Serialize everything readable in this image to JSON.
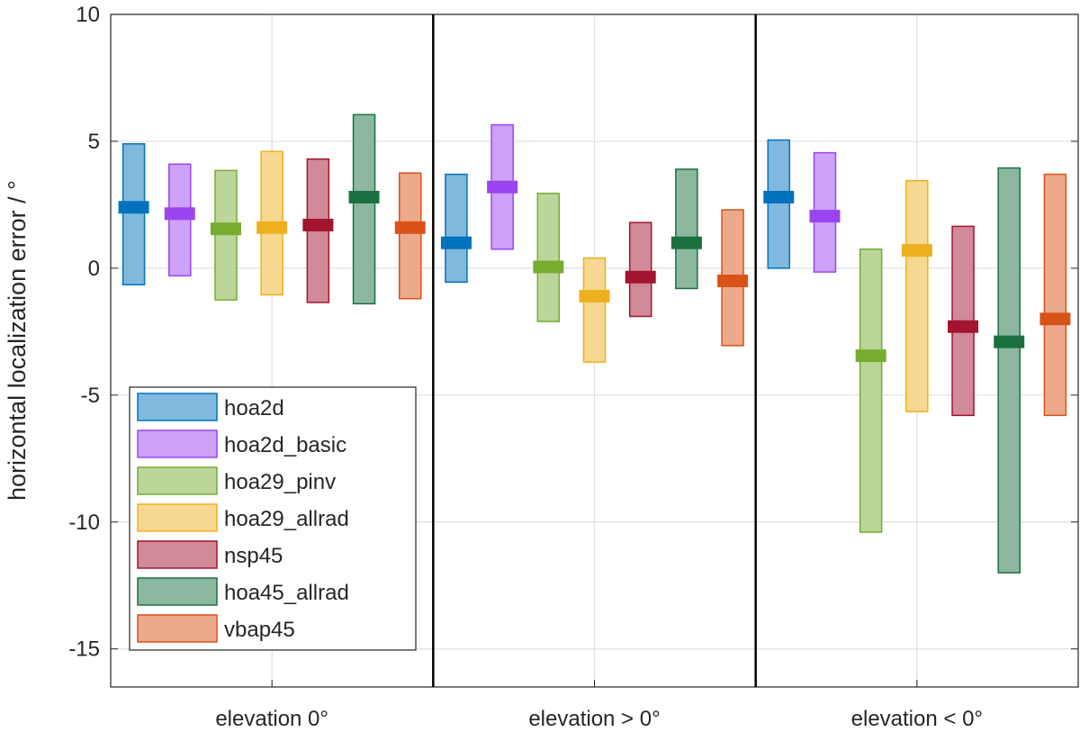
{
  "chart_data": {
    "type": "bar",
    "title": "",
    "xlabel": "",
    "ylabel": "horizontal localization error / °",
    "ylim": [
      -16.5,
      10
    ],
    "yticks": [
      10,
      5,
      0,
      -5,
      -10,
      -15
    ],
    "ytick_labels": [
      "10",
      "5",
      "0",
      "-5",
      "-10",
      "-15"
    ],
    "grid": true,
    "legend_position": "bottom-left",
    "categories": [
      "elevation 0°",
      "elevation > 0°",
      "elevation < 0°"
    ],
    "series": [
      {
        "name": "hoa2d",
        "color": "#0072BD",
        "medians": [
          2.4,
          1.0,
          2.8
        ],
        "lows": [
          -0.65,
          -0.55,
          0.0
        ],
        "highs": [
          4.9,
          3.7,
          5.05
        ]
      },
      {
        "name": "hoa2d_basic",
        "color": "#9B45F0",
        "medians": [
          2.15,
          3.2,
          2.05
        ],
        "lows": [
          -0.3,
          0.75,
          -0.15
        ],
        "highs": [
          4.1,
          5.65,
          4.55
        ]
      },
      {
        "name": "hoa29_pinv",
        "color": "#77AC30",
        "medians": [
          1.55,
          0.05,
          -3.45
        ],
        "lows": [
          -1.25,
          -2.1,
          -10.4
        ],
        "highs": [
          3.85,
          2.95,
          0.75
        ]
      },
      {
        "name": "hoa29_allrad",
        "color": "#EDB120",
        "medians": [
          1.6,
          -1.1,
          0.7
        ],
        "lows": [
          -1.05,
          -3.7,
          -5.65
        ],
        "highs": [
          4.6,
          0.4,
          3.45
        ]
      },
      {
        "name": "nsp45",
        "color": "#A2142F",
        "medians": [
          1.7,
          -0.35,
          -2.3
        ],
        "lows": [
          -1.35,
          -1.9,
          -5.8
        ],
        "highs": [
          4.3,
          1.8,
          1.65
        ]
      },
      {
        "name": "hoa45_allrad",
        "color": "#1B7040",
        "medians": [
          2.8,
          1.0,
          -2.9
        ],
        "lows": [
          -1.4,
          -0.8,
          -12.0
        ],
        "highs": [
          6.05,
          3.9,
          3.95
        ]
      },
      {
        "name": "vbap45",
        "color": "#D95319",
        "medians": [
          1.6,
          -0.5,
          -2.0
        ],
        "lows": [
          -1.2,
          -3.05,
          -5.8
        ],
        "highs": [
          3.75,
          2.3,
          3.7
        ]
      }
    ]
  }
}
